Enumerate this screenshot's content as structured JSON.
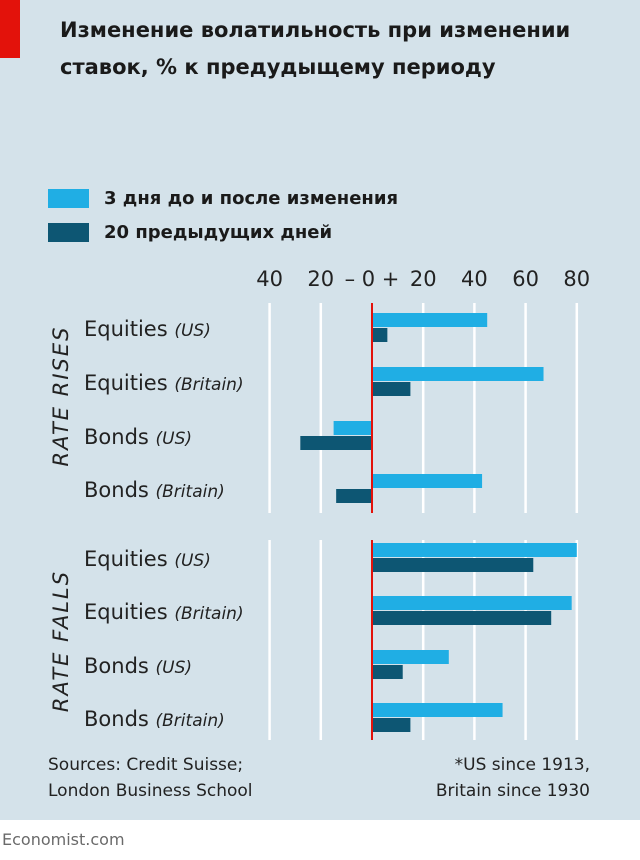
{
  "title": "Изменение волатильность при изменении ставок, % к предудыщему периоду",
  "legend": [
    {
      "label": "3 дня до и после изменения",
      "color": "#20aee4"
    },
    {
      "label": "20 предыдущих дней",
      "color": "#0d5673"
    }
  ],
  "sources": {
    "line1": "Sources: Credit Suisse;",
    "line2": "London Business School"
  },
  "footnote": {
    "line1": "*US since 1913,",
    "line2": "Britain since 1930"
  },
  "brand": "Economist.com",
  "colors": {
    "background": "#d4e2ea",
    "accent": "#e3120b",
    "bar_light": "#20aee4",
    "bar_dark": "#0d5673",
    "zero_line": "#e3120b"
  },
  "chart_data": {
    "type": "bar",
    "orientation": "horizontal",
    "xlim": [
      -40,
      80
    ],
    "ticks": [
      {
        "value": -40,
        "label": "40"
      },
      {
        "value": -20,
        "label": "20"
      },
      {
        "value": 0,
        "label": "– 0 +"
      },
      {
        "value": 20,
        "label": "20"
      },
      {
        "value": 40,
        "label": "40"
      },
      {
        "value": 60,
        "label": "60"
      },
      {
        "value": 80,
        "label": "80"
      }
    ],
    "grid": true,
    "groups": [
      {
        "name": "RATE RISES",
        "categories": [
          {
            "main": "Equities",
            "sub": "(US)",
            "values": [
              45,
              6
            ]
          },
          {
            "main": "Equities",
            "sub": "(Britain)",
            "values": [
              67,
              15
            ]
          },
          {
            "main": "Bonds",
            "sub": "(US)",
            "values": [
              -15,
              -28
            ]
          },
          {
            "main": "Bonds",
            "sub": "(Britain)",
            "values": [
              43,
              -14
            ]
          }
        ]
      },
      {
        "name": "RATE FALLS",
        "categories": [
          {
            "main": "Equities",
            "sub": "(US)",
            "values": [
              80,
              63
            ]
          },
          {
            "main": "Equities",
            "sub": "(Britain)",
            "values": [
              78,
              70
            ]
          },
          {
            "main": "Bonds",
            "sub": "(US)",
            "values": [
              30,
              12
            ]
          },
          {
            "main": "Bonds",
            "sub": "(Britain)",
            "values": [
              51,
              15
            ]
          }
        ]
      }
    ]
  }
}
